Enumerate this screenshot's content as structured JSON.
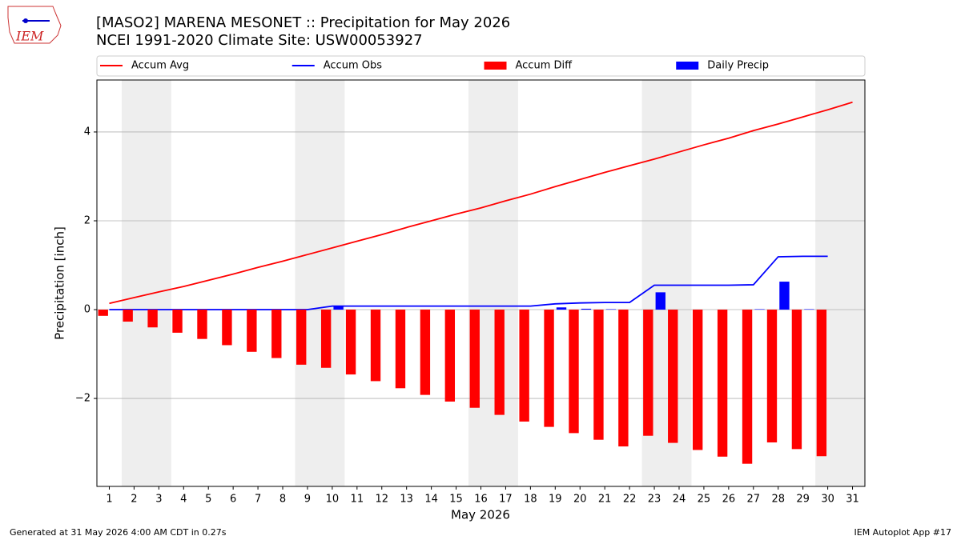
{
  "logo_text": "IEM",
  "footer_left": "Generated at 31 May 2026 4:00 AM CDT in 0.27s",
  "footer_right": "IEM Autoplot App #17",
  "chart_data": {
    "type": "bar",
    "title": "[MASO2] MARENA MESONET :: Precipitation for May 2026",
    "subtitle": "NCEI 1991-2020 Climate Site: USW00053927",
    "xlabel": "May 2026",
    "ylabel": "Precipitation [inch]",
    "x": [
      1,
      2,
      3,
      4,
      5,
      6,
      7,
      8,
      9,
      10,
      11,
      12,
      13,
      14,
      15,
      16,
      17,
      18,
      19,
      20,
      21,
      22,
      23,
      24,
      25,
      26,
      27,
      28,
      29,
      30,
      31
    ],
    "xlim": [
      0.5,
      31.5
    ],
    "xticks": [
      1,
      2,
      3,
      4,
      5,
      6,
      7,
      8,
      9,
      10,
      11,
      12,
      13,
      14,
      15,
      16,
      17,
      18,
      19,
      20,
      21,
      22,
      23,
      24,
      25,
      26,
      27,
      28,
      29,
      30,
      31
    ],
    "ylim": [
      -3.98,
      5.17
    ],
    "yticks": [
      {
        "value": -2,
        "label": "−2"
      },
      0,
      2,
      4
    ],
    "grid": true,
    "shaded_spans": [
      [
        1.5,
        3.5
      ],
      [
        8.5,
        10.5
      ],
      [
        15.5,
        17.5
      ],
      [
        22.5,
        24.5
      ],
      [
        29.5,
        31.5
      ]
    ],
    "shade_color": "#eeeeee",
    "legend": "top",
    "series": [
      {
        "name": "Accum Avg",
        "color": "#ff0000",
        "kind": "line",
        "values": [
          0.14,
          0.27,
          0.4,
          0.52,
          0.66,
          0.8,
          0.95,
          1.09,
          1.24,
          1.39,
          1.54,
          1.69,
          1.85,
          2.0,
          2.15,
          2.29,
          2.45,
          2.6,
          2.77,
          2.93,
          3.09,
          3.24,
          3.39,
          3.55,
          3.71,
          3.86,
          4.03,
          4.18,
          4.34,
          4.5,
          4.67
        ]
      },
      {
        "name": "Accum Obs",
        "color": "#0000ff",
        "kind": "line",
        "values": [
          0,
          0,
          0,
          0,
          0,
          0,
          0,
          0,
          0,
          0.08,
          0.08,
          0.08,
          0.08,
          0.08,
          0.08,
          0.08,
          0.08,
          0.08,
          0.13,
          0.15,
          0.16,
          0.16,
          0.55,
          0.55,
          0.55,
          0.55,
          0.56,
          1.19,
          1.2,
          1.2,
          null
        ]
      },
      {
        "name": "Accum Diff",
        "color": "#ff0000",
        "kind": "bar",
        "offset": -0.25,
        "values": [
          -0.14,
          -0.27,
          -0.4,
          -0.52,
          -0.66,
          -0.8,
          -0.95,
          -1.09,
          -1.24,
          -1.31,
          -1.46,
          -1.61,
          -1.77,
          -1.92,
          -2.07,
          -2.21,
          -2.37,
          -2.52,
          -2.64,
          -2.78,
          -2.93,
          -3.08,
          -2.84,
          -3.0,
          -3.16,
          -3.31,
          -3.47,
          -2.99,
          -3.14,
          -3.3,
          null
        ]
      },
      {
        "name": "Daily Precip",
        "color": "#0000ff",
        "kind": "bar",
        "offset": 0.25,
        "values": [
          0,
          0,
          0,
          0,
          0,
          0,
          0,
          0,
          0,
          0.08,
          0,
          0,
          0,
          0,
          0,
          0,
          0,
          0,
          0.05,
          0.02,
          0.01,
          0,
          0.39,
          0,
          0,
          0,
          0.01,
          0.63,
          0.01,
          0,
          null
        ]
      }
    ]
  }
}
